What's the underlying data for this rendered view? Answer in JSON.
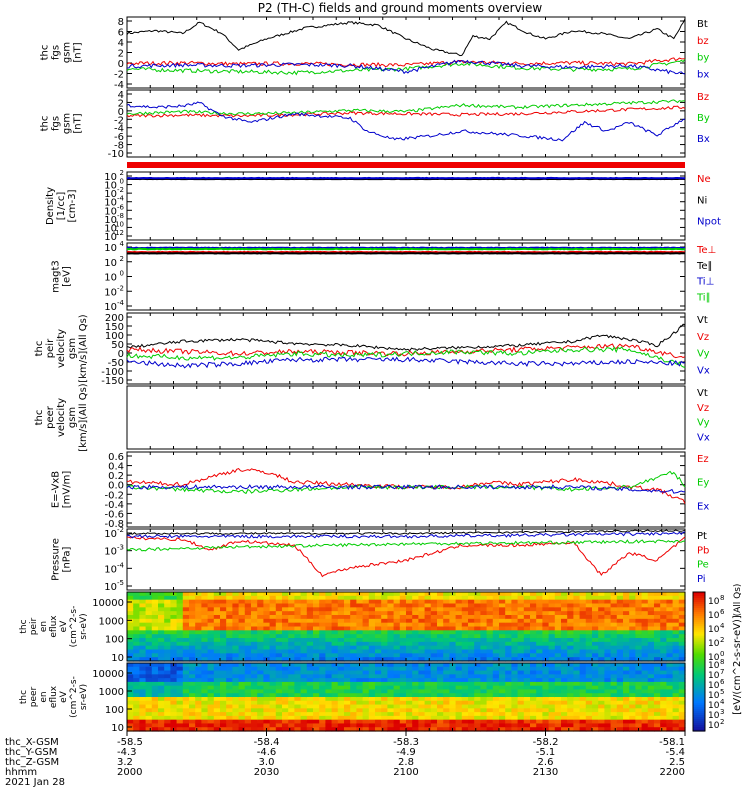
{
  "title": "P2 (TH-C) fields and ground moments overview",
  "colors": {
    "black": "#000000",
    "red": "#ee0000",
    "green": "#00cc00",
    "blue": "#0000cc"
  },
  "chart_data": [
    {
      "type": "line",
      "panel": "fgs_gsm",
      "ylabel": [
        "thc",
        "fgs",
        "gsm",
        "[nT]"
      ],
      "yticks": [
        "8",
        "6",
        "4",
        "2",
        "0",
        "-2",
        "-4"
      ],
      "ylim": [
        -4,
        9
      ],
      "series": [
        {
          "name": "Bt",
          "color": "black",
          "x": [
            0,
            0.05,
            0.1,
            0.13,
            0.17,
            0.2,
            0.25,
            0.32,
            0.4,
            0.45,
            0.5,
            0.55,
            0.6,
            0.62,
            0.65,
            0.68,
            0.72,
            0.75,
            0.8,
            0.85,
            0.9,
            0.95,
            0.98,
            1
          ],
          "y": [
            6,
            6.5,
            6,
            8,
            6,
            3,
            5,
            7,
            8,
            7.5,
            5,
            3,
            2,
            5.5,
            5,
            8,
            6,
            5,
            6.5,
            6,
            5,
            6.8,
            5,
            8.5
          ]
        },
        {
          "name": "bz",
          "color": "red",
          "x": [
            0,
            0.1,
            0.2,
            0.3,
            0.4,
            0.5,
            0.6,
            0.7,
            0.8,
            0.9,
            1
          ],
          "y": [
            0.5,
            0.6,
            0.4,
            0.5,
            0.3,
            0.2,
            0.8,
            0.5,
            0.6,
            0.4,
            1.5
          ]
        },
        {
          "name": "by",
          "color": "green",
          "x": [
            0,
            0.1,
            0.2,
            0.3,
            0.4,
            0.5,
            0.6,
            0.7,
            0.8,
            0.9,
            1
          ],
          "y": [
            -0.5,
            -0.8,
            -1,
            -1.2,
            -0.8,
            -0.5,
            0.5,
            -0.3,
            -0.6,
            -0.5,
            1
          ]
        },
        {
          "name": "bx",
          "color": "blue",
          "x": [
            0,
            0.1,
            0.2,
            0.3,
            0.4,
            0.5,
            0.6,
            0.7,
            0.8,
            0.9,
            1
          ],
          "y": [
            0,
            0.2,
            0.1,
            0.3,
            0.1,
            -1,
            1,
            0.1,
            -0.2,
            0.1,
            -1.5
          ]
        }
      ]
    },
    {
      "type": "line",
      "panel": "fgs_gse",
      "ylabel": [
        "thc",
        "fgs",
        "gsm",
        "[nT]"
      ],
      "yticks": [
        "4",
        "2",
        "0",
        "-2",
        "-4",
        "-6",
        "-8",
        "-10"
      ],
      "ylim": [
        -11,
        4.5
      ],
      "series": [
        {
          "name": "Bz",
          "color": "red",
          "x": [
            0,
            0.1,
            0.2,
            0.3,
            0.4,
            0.5,
            0.6,
            0.7,
            0.8,
            0.9,
            1
          ],
          "y": [
            -1.5,
            -1.3,
            -1.5,
            -1.2,
            -0.8,
            -1,
            -1.2,
            -1,
            -0.5,
            0,
            0.5
          ]
        },
        {
          "name": "By",
          "color": "green",
          "x": [
            0,
            0.1,
            0.2,
            0.3,
            0.4,
            0.5,
            0.6,
            0.7,
            0.8,
            0.9,
            1
          ],
          "y": [
            -1,
            -0.5,
            -1,
            -0.8,
            -0.2,
            -0.5,
            1,
            0.5,
            1,
            1.5,
            2
          ]
        },
        {
          "name": "Bx",
          "color": "blue",
          "x": [
            0,
            0.05,
            0.1,
            0.13,
            0.17,
            0.22,
            0.3,
            0.4,
            0.43,
            0.48,
            0.55,
            0.6,
            0.7,
            0.78,
            0.82,
            0.86,
            0.9,
            0.95,
            1
          ],
          "y": [
            1,
            0.5,
            0.8,
            1.5,
            -1.5,
            -3,
            -1,
            -2,
            -5,
            -7,
            -6,
            -5,
            -6,
            -7,
            -3,
            -5,
            -3,
            -6,
            -2
          ]
        }
      ]
    },
    {
      "type": "line",
      "panel": "density",
      "ylabel": [
        "Density",
        "[1/cc]",
        "[cm-3]"
      ],
      "yticks": [
        "10",
        "10",
        "10",
        "10",
        "10",
        "10",
        "10",
        "10"
      ],
      "yexp": [
        "2",
        "0",
        "-2",
        "-4",
        "-6",
        "-8",
        "-10",
        "-12"
      ],
      "ylim": [
        -13,
        2.5
      ],
      "scale": "log",
      "series": [
        {
          "name": "Ne",
          "color": "red",
          "x": [
            0,
            1
          ],
          "y": [
            1,
            1
          ]
        },
        {
          "name": "Ni",
          "color": "black",
          "x": [
            0,
            1
          ],
          "y": [
            0.9,
            0.9
          ]
        },
        {
          "name": "Npot",
          "color": "blue",
          "x": [
            0,
            1
          ],
          "y": [
            1.1,
            1.1
          ]
        }
      ]
    },
    {
      "type": "line",
      "panel": "temperature",
      "ylabel": [
        "magt3",
        "[eV]"
      ],
      "yticks": [
        "10",
        "10",
        "10",
        "10",
        "10"
      ],
      "yexp": [
        "4",
        "2",
        "0",
        "-2",
        "-4"
      ],
      "ylim": [
        -6,
        5
      ],
      "scale": "log",
      "series": [
        {
          "name": "Te⊥",
          "color": "red",
          "x": [
            0,
            1
          ],
          "y": [
            3.5,
            3.5
          ]
        },
        {
          "name": "Te∥",
          "color": "black",
          "x": [
            0,
            1
          ],
          "y": [
            3.3,
            3.3
          ]
        },
        {
          "name": "Ti⊥",
          "color": "blue",
          "x": [
            0,
            1
          ],
          "y": [
            4.2,
            4.2
          ]
        },
        {
          "name": "Ti∥",
          "color": "green",
          "x": [
            0,
            1
          ],
          "y": [
            4,
            4
          ]
        }
      ]
    },
    {
      "type": "line",
      "panel": "peir_velocity",
      "ylabel": [
        "thc",
        "peir",
        "velocity",
        "gsm",
        "[km/s](All Qs)"
      ],
      "yticks": [
        "200",
        "150",
        "100",
        "50",
        "0",
        "-50",
        "-100",
        "-150"
      ],
      "ylim": [
        -150,
        200
      ],
      "series": [
        {
          "name": "Vt",
          "color": "black",
          "x": [
            0,
            0.1,
            0.2,
            0.3,
            0.4,
            0.5,
            0.6,
            0.7,
            0.8,
            0.85,
            0.9,
            0.95,
            0.98,
            1
          ],
          "y": [
            30,
            60,
            70,
            50,
            40,
            20,
            30,
            40,
            60,
            90,
            70,
            40,
            100,
            150
          ]
        },
        {
          "name": "Vz",
          "color": "red",
          "x": [
            0,
            0.1,
            0.2,
            0.3,
            0.4,
            0.5,
            0.6,
            0.7,
            0.8,
            0.9,
            1
          ],
          "y": [
            20,
            10,
            0,
            10,
            5,
            0,
            10,
            20,
            30,
            40,
            -20
          ]
        },
        {
          "name": "Vy",
          "color": "green",
          "x": [
            0,
            0.1,
            0.2,
            0.3,
            0.4,
            0.5,
            0.6,
            0.7,
            0.8,
            0.9,
            1
          ],
          "y": [
            -10,
            -20,
            -20,
            0,
            -10,
            0,
            10,
            0,
            20,
            20,
            -60
          ]
        },
        {
          "name": "Vx",
          "color": "blue",
          "x": [
            0,
            0.1,
            0.2,
            0.3,
            0.4,
            0.5,
            0.6,
            0.7,
            0.8,
            0.9,
            1
          ],
          "y": [
            -40,
            -60,
            -50,
            -30,
            -30,
            -30,
            -40,
            -50,
            -50,
            -40,
            -50
          ]
        }
      ]
    },
    {
      "type": "line",
      "panel": "peer_velocity",
      "ylabel": [
        "thc",
        "peer",
        "velocity",
        "gsm",
        "[km/s](All Qs)"
      ],
      "series": [
        {
          "name": "Vt",
          "color": "black",
          "x": [],
          "y": []
        },
        {
          "name": "Vz",
          "color": "red",
          "x": [],
          "y": []
        },
        {
          "name": "Vy",
          "color": "green",
          "x": [],
          "y": []
        },
        {
          "name": "Vx",
          "color": "blue",
          "x": [],
          "y": []
        }
      ]
    },
    {
      "type": "line",
      "panel": "efield",
      "ylabel": [
        "E=-VxB",
        "[mV/m]"
      ],
      "yticks": [
        "0.6",
        "0.4",
        "0.2",
        "0.0",
        "-0.2",
        "-0.4",
        "-0.6",
        "-0.8"
      ],
      "ylim": [
        -0.8,
        0.7
      ],
      "series": [
        {
          "name": "Ez",
          "color": "red",
          "x": [
            0,
            0.1,
            0.15,
            0.2,
            0.25,
            0.3,
            0.4,
            0.5,
            0.6,
            0.65,
            0.7,
            0.8,
            0.85,
            0.9,
            0.95,
            1
          ],
          "y": [
            0.1,
            0.05,
            0.2,
            0.35,
            0.3,
            0.1,
            0.05,
            0,
            0,
            0.1,
            0.05,
            0.15,
            0.1,
            0,
            -0.05,
            -0.3
          ]
        },
        {
          "name": "Ey",
          "color": "green",
          "x": [
            0,
            0.1,
            0.2,
            0.3,
            0.4,
            0.5,
            0.6,
            0.7,
            0.8,
            0.9,
            0.98,
            1
          ],
          "y": [
            0,
            -0.05,
            -0.1,
            -0.05,
            0,
            0,
            0,
            0,
            -0.05,
            0,
            0.3,
            0
          ]
        },
        {
          "name": "Ex",
          "color": "blue",
          "x": [
            0,
            0.2,
            0.4,
            0.6,
            0.8,
            0.9,
            1
          ],
          "y": [
            0,
            0,
            0,
            0,
            0,
            -0.05,
            -0.1
          ]
        }
      ]
    },
    {
      "type": "line",
      "panel": "pressure",
      "ylabel": [
        "Pressure",
        "[nPa]"
      ],
      "yticks": [
        "10",
        "10",
        "10",
        "10"
      ],
      "yexp": [
        "-2",
        "-3",
        "-4",
        "-5"
      ],
      "ylim": [
        -5.5,
        -1.4
      ],
      "scale": "log",
      "series": [
        {
          "name": "Pt",
          "color": "black",
          "x": [
            0,
            0.5,
            1
          ],
          "y": [
            -1.7,
            -1.7,
            -1.5
          ]
        },
        {
          "name": "Pb",
          "color": "red",
          "x": [
            0,
            0.1,
            0.15,
            0.2,
            0.3,
            0.35,
            0.4,
            0.5,
            0.6,
            0.7,
            0.8,
            0.85,
            0.9,
            0.95,
            1
          ],
          "y": [
            -2,
            -2.1,
            -2.8,
            -2.2,
            -2.5,
            -4.5,
            -4,
            -3.5,
            -2.5,
            -2.5,
            -2.3,
            -4.5,
            -3,
            -3.5,
            -2
          ]
        },
        {
          "name": "Pe",
          "color": "green",
          "x": [
            0,
            0.2,
            0.5,
            0.8,
            1
          ],
          "y": [
            -2.8,
            -2.6,
            -2.4,
            -2.3,
            -2.2
          ]
        },
        {
          "name": "Pi",
          "color": "blue",
          "x": [
            0,
            0.5,
            1
          ],
          "y": [
            -1.9,
            -1.9,
            -1.7
          ]
        }
      ]
    },
    {
      "type": "heatmap",
      "panel": "peir_eflux",
      "ylabel": [
        "thc",
        "peir",
        "en",
        "eflux",
        "eV",
        "(cm^2-s-",
        "sr-eV)"
      ],
      "yticks": [
        "10000",
        "1000",
        "100",
        "10"
      ],
      "ylim": [
        5,
        30000
      ],
      "scale": "log"
    },
    {
      "type": "heatmap",
      "panel": "peer_eflux",
      "ylabel": [
        "thc",
        "peer",
        "en",
        "eflux",
        "eV",
        "(cm^2-s-",
        "sr-eV)"
      ],
      "yticks": [
        "10000",
        "1000",
        "100",
        "10"
      ],
      "ylim": [
        5,
        30000
      ],
      "scale": "log"
    }
  ],
  "colorbar": {
    "label": "[eV/(cm^2-s-sr-eV)]",
    "upper_label": "(All Qs)",
    "upper_ticks": [
      "10",
      "10",
      "10",
      "10",
      "10"
    ],
    "upper_exp": [
      "8",
      "6",
      "4",
      "2",
      "0"
    ],
    "lower_ticks": [
      "10",
      "10",
      "10",
      "10",
      "10",
      "10",
      "10"
    ],
    "lower_exp": [
      "8",
      "7",
      "6",
      "5",
      "4",
      "3",
      "2"
    ]
  },
  "xaxis": {
    "row_labels": [
      "thc_X-GSM",
      "thc_Y-GSM",
      "thc_Z-GSM",
      "hhmm",
      "2021 Jan 28"
    ],
    "ticks": [
      {
        "x": "-58.5",
        "y": "-4.3",
        "z": "3.2",
        "t": "2000"
      },
      {
        "x": "-58.4",
        "y": "-4.6",
        "z": "3.0",
        "t": "2030"
      },
      {
        "x": "-58.3",
        "y": "-4.9",
        "z": "2.8",
        "t": "2100"
      },
      {
        "x": "-58.2",
        "y": "-5.1",
        "z": "2.6",
        "t": "2130"
      },
      {
        "x": "-58.1",
        "y": "-5.4",
        "z": "2.5",
        "t": "2200"
      }
    ]
  }
}
